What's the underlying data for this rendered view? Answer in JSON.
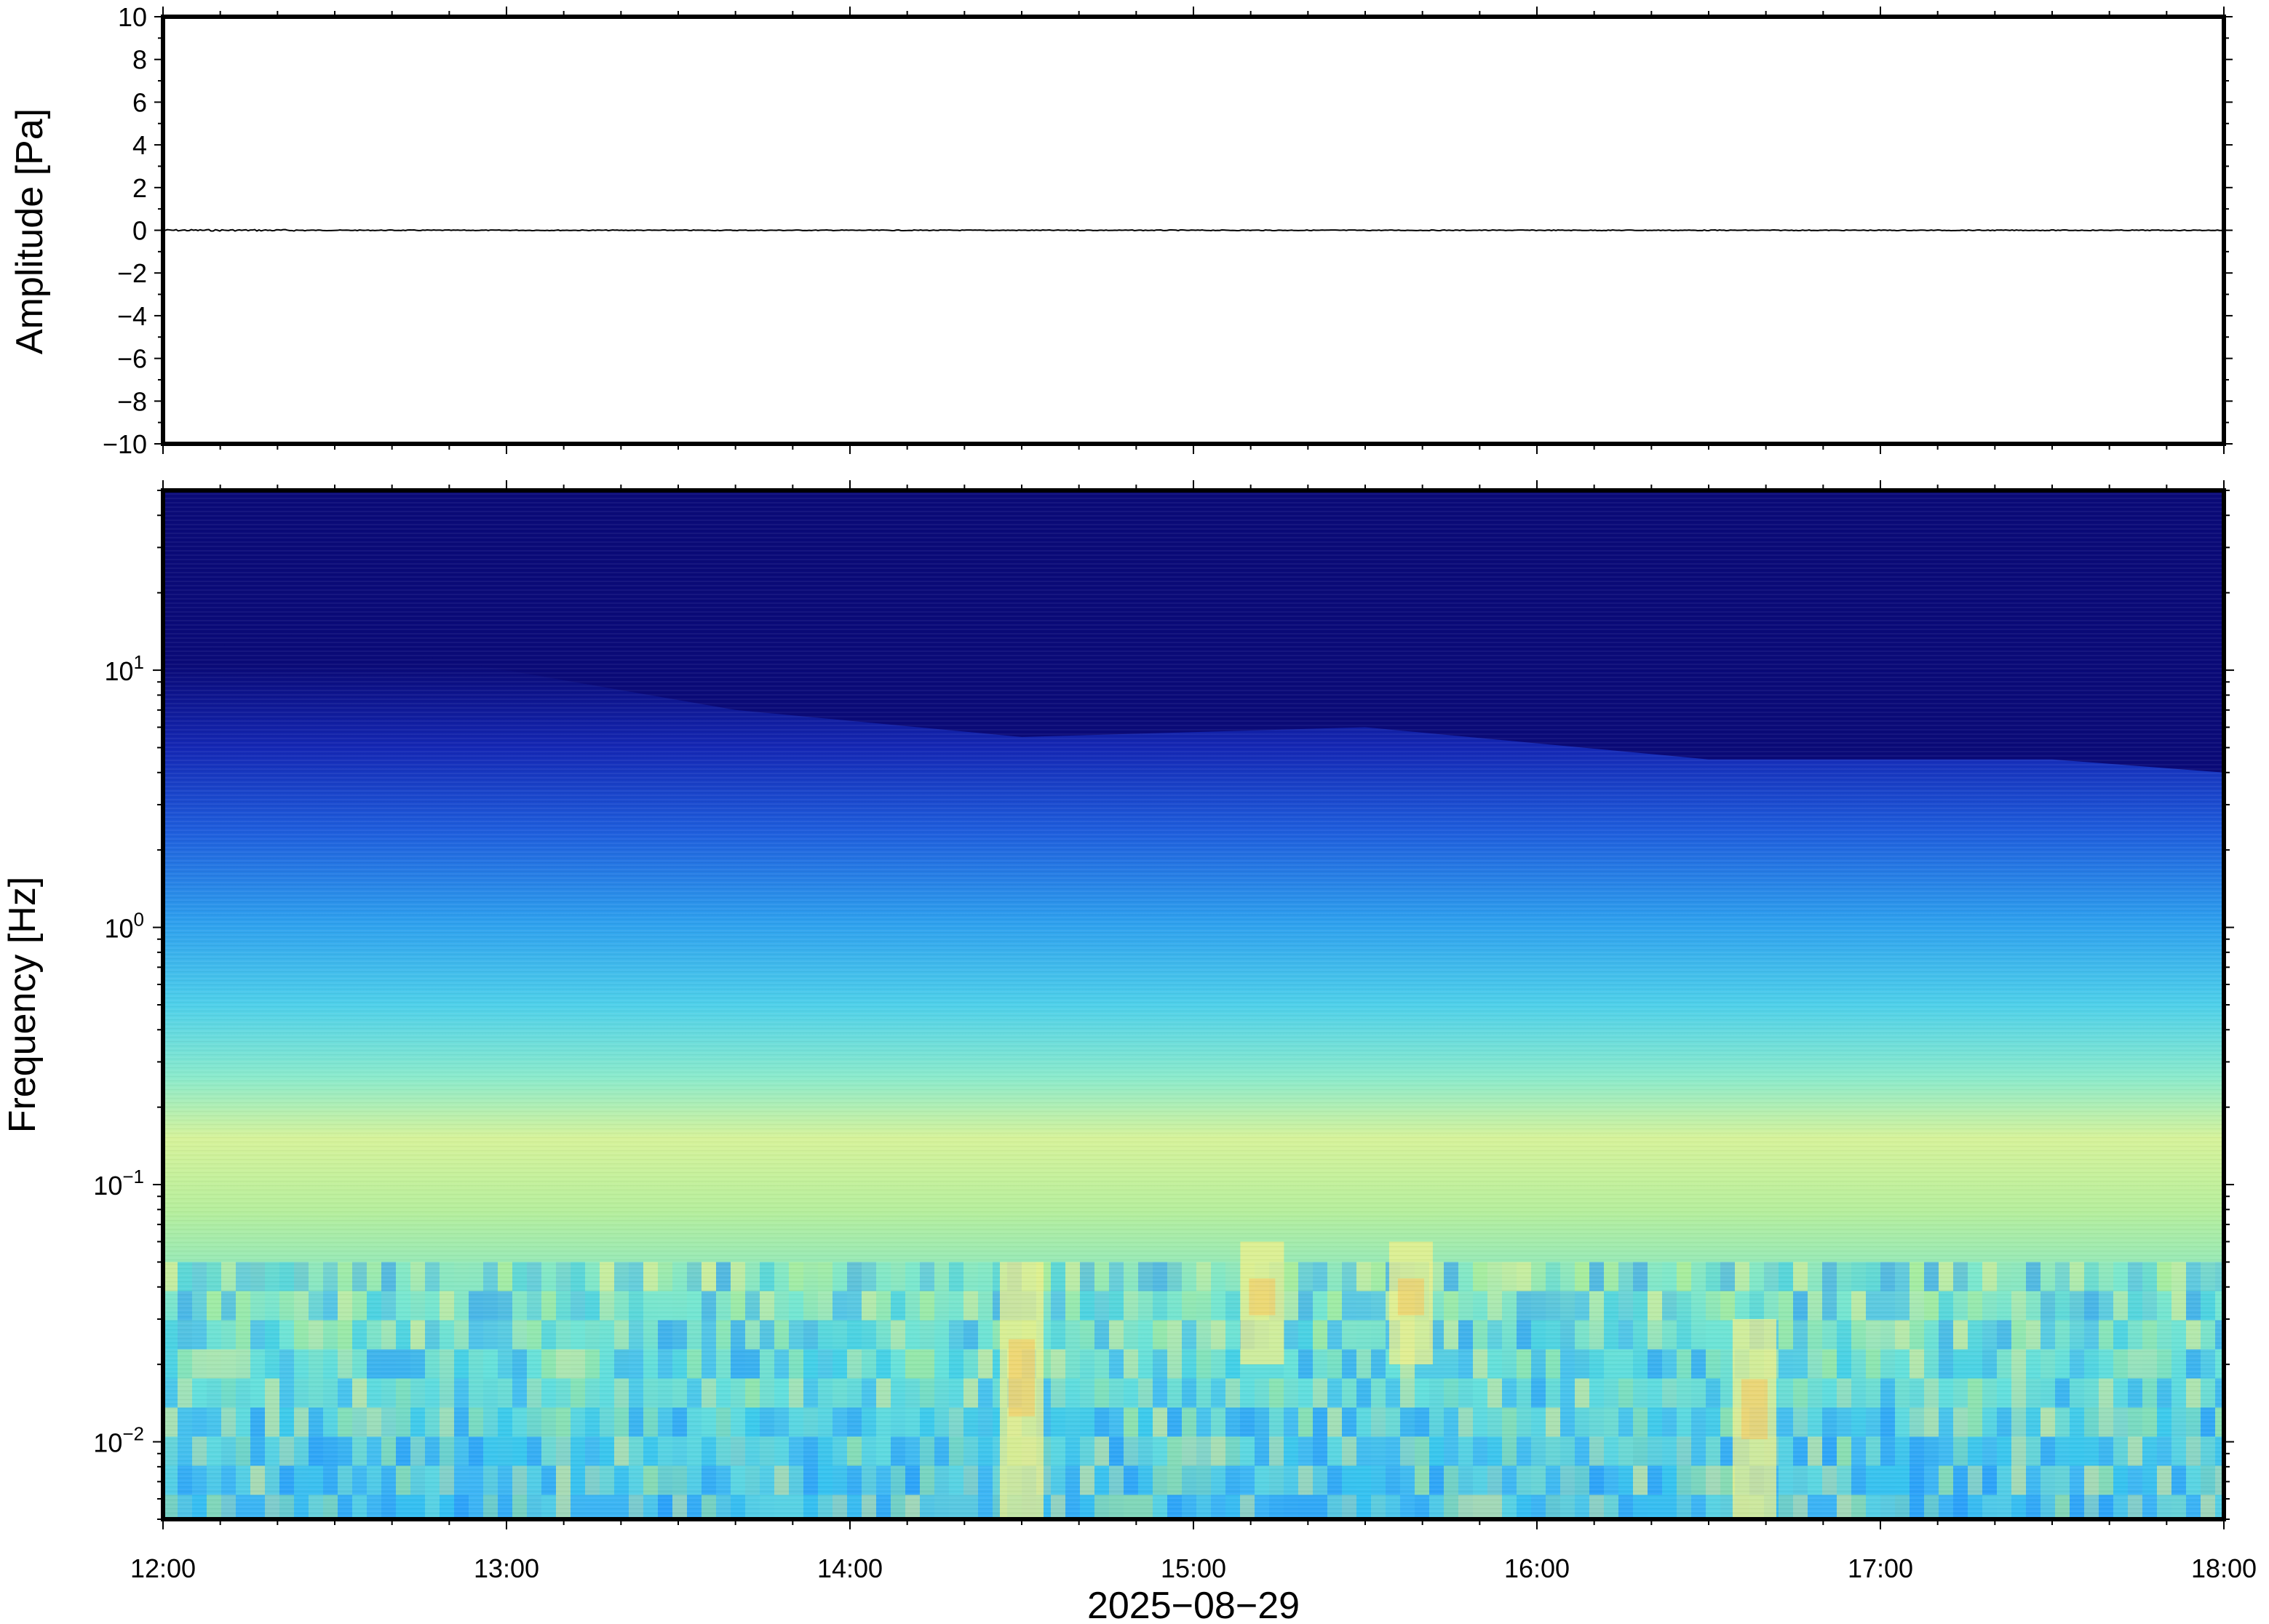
{
  "chart_data": [
    {
      "type": "line",
      "panel": "waveform",
      "ylabel": "Amplitude [Pa]",
      "ylim": [
        -10,
        10
      ],
      "yticks": [
        10,
        8,
        6,
        4,
        2,
        0,
        -2,
        -4,
        -6,
        -8,
        -10
      ],
      "ytick_labels": [
        "10",
        "8",
        "6",
        "4",
        "2",
        "0",
        "−2",
        "−4",
        "−6",
        "−8",
        "−10"
      ],
      "xlim": [
        "12:00",
        "18:00"
      ],
      "series": [
        {
          "color": "#000000",
          "x": [
            "12:00",
            "18:00"
          ],
          "y": [
            0,
            0
          ]
        }
      ],
      "grid": false
    },
    {
      "type": "heatmap",
      "panel": "spectrogram",
      "ylabel": "Frequency [Hz]",
      "yscale": "log",
      "ylim": [
        0.005,
        50
      ],
      "yticks": [
        10,
        1,
        0.1,
        0.01
      ],
      "ytick_labels": [
        {
          "base": "10",
          "exp": "1"
        },
        {
          "base": "10",
          "exp": "0"
        },
        {
          "base": "10",
          "exp": "−1"
        },
        {
          "base": "10",
          "exp": "−2"
        }
      ],
      "xlabel": "2025−08−29",
      "xtick_labels": [
        "12:00",
        "13:00",
        "14:00",
        "15:00",
        "16:00",
        "17:00",
        "18:00"
      ],
      "xlim": [
        "12:00",
        "18:00"
      ],
      "colormap": "jet-like (dark blue = low power, yellow/orange = high power)",
      "colors": [
        "#0a0a78",
        "#1a2fd6",
        "#1e90ff",
        "#2ec8f0",
        "#6ee8d8",
        "#b8f08a",
        "#f0f08a",
        "#f7c860"
      ],
      "upper_cutoff_hz": {
        "times": [
          "12:00",
          "12:20",
          "13:00",
          "13:40",
          "14:30",
          "15:30",
          "16:30",
          "17:30",
          "18:00"
        ],
        "hz": [
          11,
          14,
          10,
          7,
          5.5,
          6,
          4.5,
          4.5,
          4
        ]
      },
      "high_power_events": [
        {
          "time": "14:30",
          "freq_range_hz": [
            0.005,
            0.05
          ]
        },
        {
          "time": "15:12",
          "freq_range_hz": [
            0.02,
            0.06
          ]
        },
        {
          "time": "15:38",
          "freq_range_hz": [
            0.02,
            0.06
          ]
        },
        {
          "time": "16:38",
          "freq_range_hz": [
            0.005,
            0.03
          ]
        }
      ],
      "grid": false
    }
  ]
}
